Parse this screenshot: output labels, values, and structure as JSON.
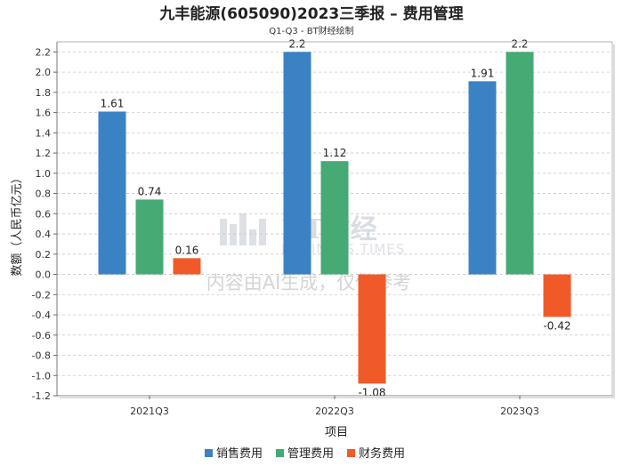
{
  "chart_data": {
    "type": "bar",
    "title": "九丰能源(605090)2023三季报 – 费用管理",
    "subtitle": "Q1-Q3 - BT财经绘制",
    "xlabel": "项目",
    "ylabel": "数额（人民币亿元）",
    "categories": [
      "2021Q3",
      "2022Q3",
      "2023Q3"
    ],
    "ylim": [
      -1.2,
      2.3
    ],
    "yticks": [
      2.2,
      2.0,
      1.8,
      1.6,
      1.4,
      1.2,
      1.0,
      0.8,
      0.6,
      0.4,
      0.2,
      0.0,
      -0.2,
      -0.4,
      -0.6,
      -0.8,
      -1.0,
      -1.2
    ],
    "ytick_labels": [
      "2.2",
      "2.0",
      "1.8",
      "1.6",
      "1.4",
      "1.2",
      "1.0",
      "0.8",
      "0.6",
      "0.4",
      "0.2",
      "0.0",
      "-0.2",
      "-0.4",
      "-0.6",
      "-0.8",
      "-1.0",
      "-1.2"
    ],
    "grid": true,
    "legend_position": "bottom",
    "series": [
      {
        "name": "销售费用",
        "color": "#3b82c4",
        "values": [
          1.61,
          2.2,
          1.91
        ],
        "labels": [
          "1.61",
          "2.2",
          "1.91"
        ]
      },
      {
        "name": "管理费用",
        "color": "#45aa74",
        "values": [
          0.74,
          1.12,
          2.2
        ],
        "labels": [
          "0.74",
          "1.12",
          "2.2"
        ]
      },
      {
        "name": "财务费用",
        "color": "#f05a28",
        "values": [
          0.16,
          -1.08,
          -0.42
        ],
        "labels": [
          "0.16",
          "-1.08",
          "-0.42"
        ]
      }
    ]
  },
  "watermark": {
    "logo": "BT财经",
    "brand": "BUSINESS TIMES",
    "note": "内容由AI生成，仅供参考"
  }
}
